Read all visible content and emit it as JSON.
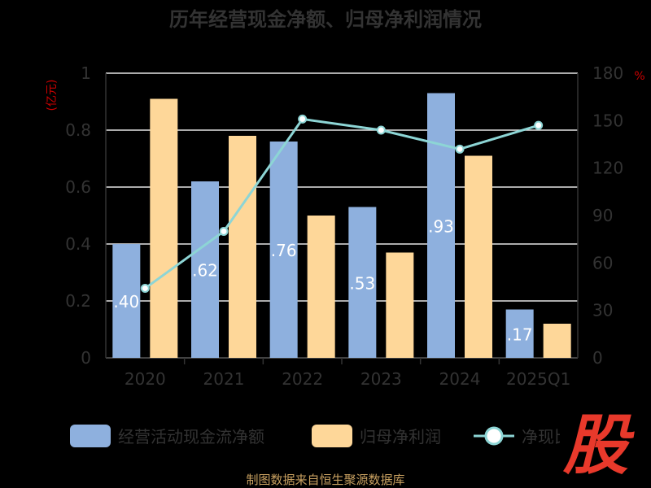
{
  "header": {
    "title": "历年经营现金净额、归母净利润情况"
  },
  "axes": {
    "left_unit": "(亿元)",
    "right_unit": "%"
  },
  "legend": {
    "items": [
      {
        "label": "经营活动现金流净额",
        "color": "#8eb0de"
      },
      {
        "label": "归母净利润",
        "color": "#fed799"
      },
      {
        "label": "净现比",
        "color": "#8dd5d5"
      }
    ]
  },
  "footer": {
    "source": "制图数据来自恒生聚源数据库"
  },
  "logo": {
    "text": "股"
  },
  "chart_data": {
    "type": "bar",
    "categories": [
      "2020",
      "2021",
      "2022",
      "2023",
      "2024",
      "2025Q1"
    ],
    "series": [
      {
        "name": "经营活动现金流净额",
        "axis": "left",
        "values": [
          0.4,
          0.62,
          0.76,
          0.53,
          0.93,
          0.17
        ],
        "labels": [
          ".40",
          ".62",
          ".76",
          ".53",
          ".93",
          ".17"
        ]
      },
      {
        "name": "归母净利润",
        "axis": "left",
        "values": [
          0.91,
          0.78,
          0.5,
          0.37,
          0.71,
          0.12
        ]
      },
      {
        "name": "净现比",
        "axis": "right",
        "type": "line",
        "values": [
          44,
          80,
          151,
          144,
          132,
          147
        ]
      }
    ],
    "y_left": {
      "min": 0,
      "max": 1,
      "ticks": [
        "0",
        "0.2",
        "0.4",
        "0.6",
        "0.8",
        "1"
      ]
    },
    "y_right": {
      "min": 0,
      "max": 180,
      "ticks": [
        "0",
        "30",
        "60",
        "90",
        "120",
        "150",
        "180"
      ]
    },
    "grid": true,
    "legend_position": "bottom"
  }
}
